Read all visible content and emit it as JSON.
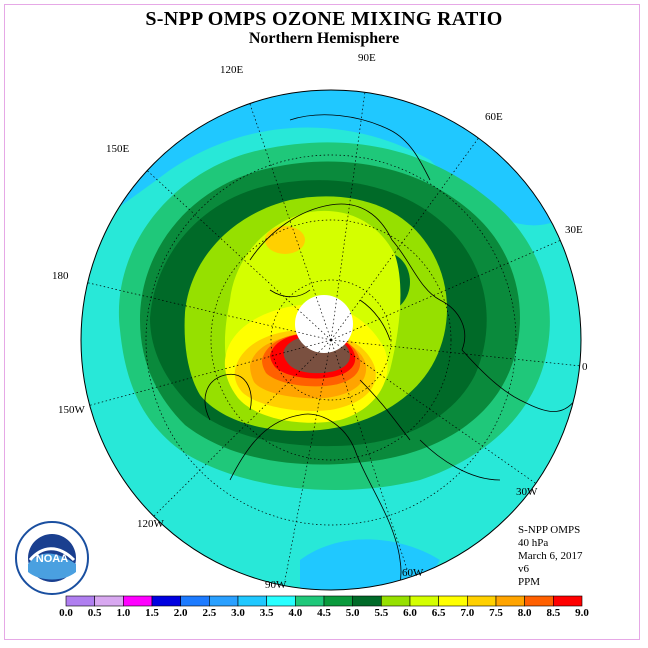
{
  "header": {
    "title": "S-NPP OMPS OZONE MIXING RATIO",
    "subtitle": "Northern Hemisphere"
  },
  "longitude_labels": [
    "90E",
    "60E",
    "30E",
    "0",
    "30W",
    "60W",
    "90W",
    "120W",
    "150W",
    "180",
    "150E",
    "120E"
  ],
  "info": {
    "instrument": "S-NPP OMPS",
    "pressure": "40 hPa",
    "date": "March 6, 2017",
    "version": "v6",
    "units": "PPM"
  },
  "logo": {
    "name": "noaa-logo",
    "text": "NOAA"
  },
  "colorbar": {
    "labels": [
      "0.0",
      "0.5",
      "1.0",
      "1.5",
      "2.0",
      "2.5",
      "3.0",
      "3.5",
      "4.0",
      "4.5",
      "5.0",
      "5.5",
      "6.0",
      "6.5",
      "7.0",
      "7.5",
      "8.0",
      "8.5",
      "9.0"
    ],
    "colors": [
      "#b07ff0",
      "#d8a8f0",
      "#ff00ff",
      "#0000e0",
      "#1d7bff",
      "#2aa0ff",
      "#20c8ff",
      "#28ffff",
      "#1fc87a",
      "#0a9a3c",
      "#006a28",
      "#96e000",
      "#d4ff00",
      "#ffff00",
      "#ffd000",
      "#ffa400",
      "#ff6000",
      "#ff0000",
      "#7a5040"
    ]
  },
  "map_colors": {
    "ocean_level_3_0": "#20c8ff",
    "level_3_5": "#28e8d8",
    "level_4_0": "#1fc87a",
    "level_4_5": "#0a8a3c",
    "level_5_0": "#006a28",
    "level_5_5": "#96e000",
    "level_6_0": "#d4ff00",
    "level_6_5": "#ffff00",
    "level_7_0": "#ffd000",
    "level_7_5": "#ffa400",
    "level_8_0": "#ff6000",
    "level_8_5": "#ff0000",
    "level_9_0": "#7a5040",
    "no_data_pole": "#ffffff"
  }
}
